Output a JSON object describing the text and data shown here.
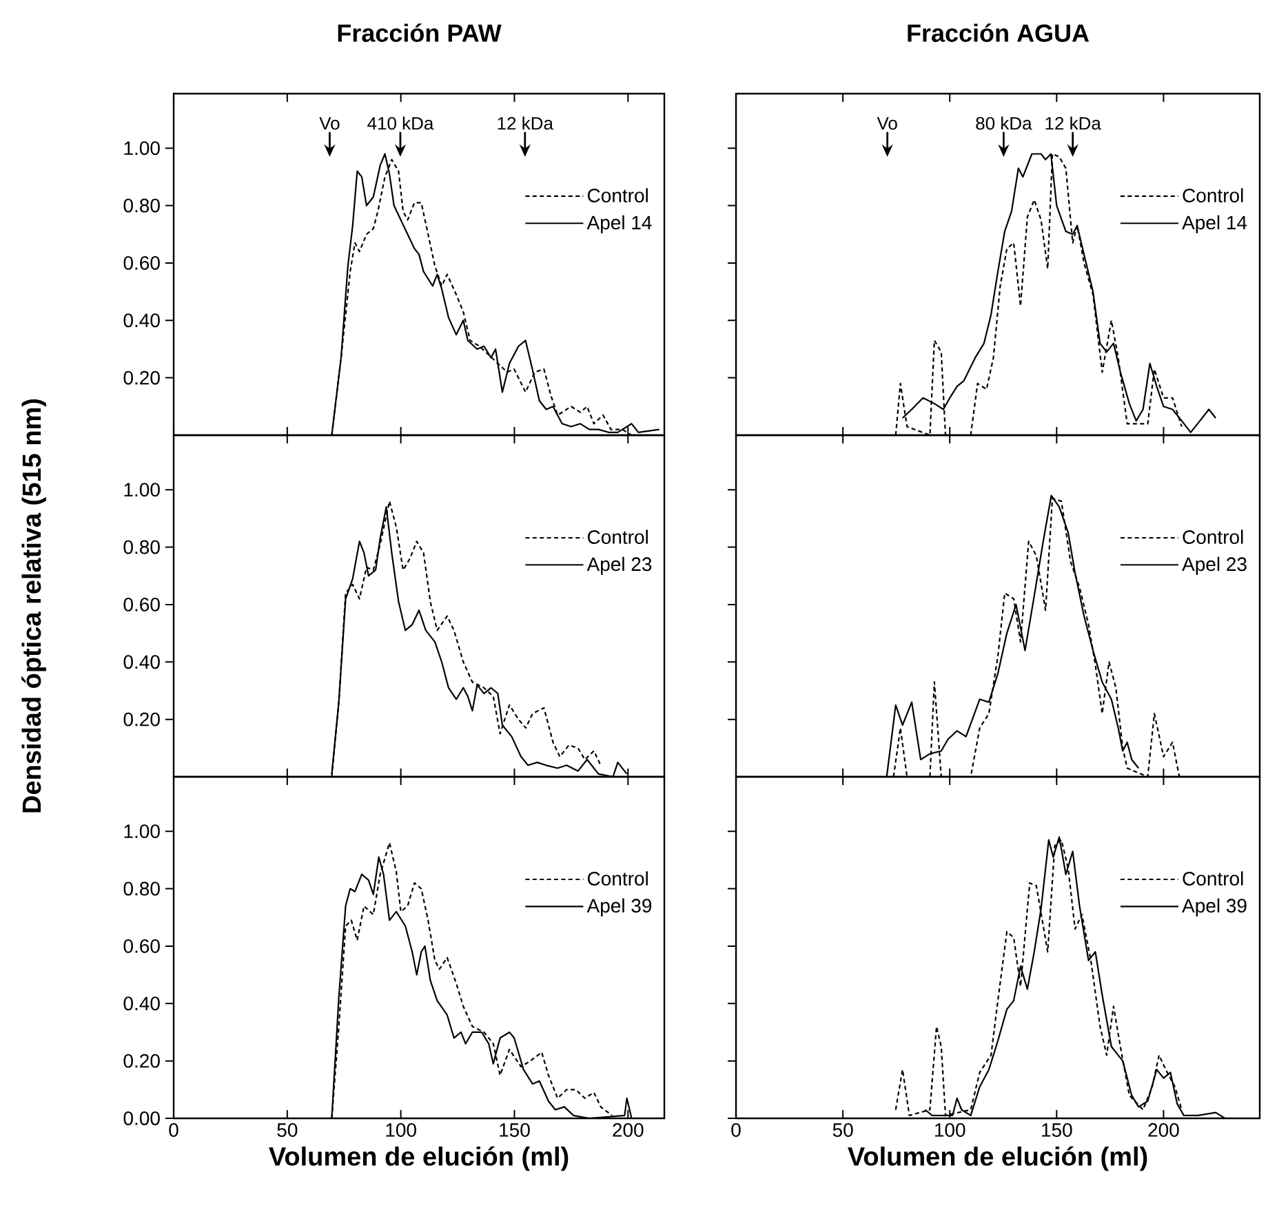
{
  "chart_data": [
    {
      "type": "line",
      "title": "Fracción PAW",
      "xlim": [
        0,
        216
      ],
      "ylim": [
        0,
        1.19
      ],
      "xticks": [
        0,
        50,
        100,
        150,
        200
      ],
      "yticks": [
        {
          "value": 0.2,
          "label": "0.20"
        },
        {
          "value": 0.4,
          "label": "0.40"
        },
        {
          "value": 0.6,
          "label": "0.60"
        },
        {
          "value": 0.8,
          "label": "0.80"
        },
        {
          "value": 1.0,
          "label": "1.00"
        }
      ],
      "tick_labels": "y",
      "legend": "right",
      "annotations": [
        "Vo",
        "410 kDa",
        "12 kDa"
      ],
      "series": [
        {
          "name": "Control",
          "color": "#000000",
          "line_style": "dashed",
          "x": [
            69.6,
            73.7,
            77.7,
            79.8,
            81.8,
            84.9,
            87.9,
            89.9,
            93,
            96,
            99,
            101,
            103,
            106,
            109,
            112,
            115,
            118,
            120.4,
            124.4,
            127.5,
            130.5,
            134.6,
            138.7,
            142.7,
            146.8,
            149.9,
            154.9,
            159,
            163,
            166,
            169,
            175,
            179,
            182,
            185,
            189,
            192.5,
            197.5,
            201.6
          ],
          "values": [
            0,
            0.27,
            0.57,
            0.67,
            0.64,
            0.7,
            0.72,
            0.78,
            0.9,
            0.96,
            0.92,
            0.78,
            0.75,
            0.81,
            0.81,
            0.7,
            0.59,
            0.52,
            0.56,
            0.49,
            0.43,
            0.33,
            0.31,
            0.28,
            0.25,
            0.22,
            0.23,
            0.15,
            0.22,
            0.23,
            0.14,
            0.07,
            0.1,
            0.08,
            0.1,
            0.04,
            0.07,
            0.02,
            0.02,
            0
          ]
        },
        {
          "name": "Apel 14",
          "color": "#000000",
          "line_style": "solid",
          "x": [
            69.6,
            73.7,
            76.7,
            78.8,
            80.8,
            82.8,
            84.9,
            87.9,
            90.9,
            93,
            95,
            97,
            100,
            103,
            106,
            108,
            110,
            114,
            116,
            118,
            121,
            124.4,
            127.5,
            129.5,
            133.6,
            136.6,
            139.7,
            141.7,
            144.7,
            147.8,
            151.8,
            154.9,
            157.9,
            161,
            164,
            167,
            171,
            175,
            179,
            183,
            187,
            191.4,
            195.5,
            201.6,
            204.6,
            213.8
          ],
          "values": [
            0,
            0.27,
            0.59,
            0.73,
            0.92,
            0.9,
            0.8,
            0.83,
            0.94,
            0.98,
            0.91,
            0.8,
            0.75,
            0.7,
            0.65,
            0.63,
            0.57,
            0.52,
            0.56,
            0.51,
            0.41,
            0.35,
            0.4,
            0.33,
            0.3,
            0.31,
            0.27,
            0.3,
            0.15,
            0.25,
            0.31,
            0.33,
            0.23,
            0.12,
            0.09,
            0.1,
            0.04,
            0.03,
            0.04,
            0.02,
            0.02,
            0.01,
            0.01,
            0.04,
            0.01,
            0.02
          ]
        }
      ]
    },
    {
      "type": "line",
      "title": "Fracción AGUA",
      "xlim": [
        0,
        245
      ],
      "ylim": [
        0,
        1.19
      ],
      "xticks": [
        0,
        50,
        100,
        150,
        200
      ],
      "yticks": [
        0.2,
        0.4,
        0.6,
        0.8,
        1.0
      ],
      "tick_labels": false,
      "legend": "right",
      "annotations": [
        "Vo",
        "80 kDa",
        "12 kDa"
      ],
      "series": [
        {
          "name": "Control",
          "color": "#000000",
          "line_style": "dashed",
          "x": [
            74.7,
            76.9,
            80,
            90.7,
            92.8,
            96,
            98,
            109.8,
            113,
            117.2,
            120.4,
            123.6,
            126.7,
            129.9,
            133.1,
            136.3,
            139.5,
            142.7,
            145.8,
            148,
            151.2,
            154.3,
            157.5,
            159.6,
            162.8,
            167,
            171.3,
            175.6,
            178.8,
            183,
            192.6,
            195.7,
            200,
            204.2,
            208.5
          ],
          "values": [
            0,
            0.18,
            0.03,
            0,
            0.33,
            0.29,
            0,
            0,
            0.18,
            0.16,
            0.27,
            0.52,
            0.65,
            0.67,
            0.45,
            0.76,
            0.82,
            0.75,
            0.58,
            0.98,
            0.97,
            0.93,
            0.67,
            0.73,
            0.6,
            0.49,
            0.22,
            0.4,
            0.27,
            0.04,
            0.04,
            0.23,
            0.13,
            0.13,
            0.03
          ]
        },
        {
          "name": "Apel 14",
          "color": "#000000",
          "line_style": "solid",
          "x": [
            77.9,
            82.2,
            87.5,
            92.8,
            97,
            100,
            103.4,
            106.6,
            111.9,
            116,
            119.3,
            122.5,
            125.7,
            128.9,
            132.1,
            134.2,
            138.4,
            142.7,
            144.8,
            147.3,
            150,
            154.3,
            157.5,
            159.6,
            162.8,
            167,
            170.3,
            173.4,
            176.6,
            179.8,
            184,
            187.2,
            190.4,
            193.6,
            196.8,
            200,
            204.2,
            208.5,
            212.7,
            217,
            221.2,
            224.4
          ],
          "values": [
            0.06,
            0.09,
            0.13,
            0.11,
            0.09,
            0.13,
            0.17,
            0.19,
            0.27,
            0.32,
            0.42,
            0.57,
            0.71,
            0.78,
            0.93,
            0.9,
            0.98,
            0.98,
            0.96,
            0.98,
            0.8,
            0.71,
            0.7,
            0.73,
            0.63,
            0.5,
            0.32,
            0.29,
            0.32,
            0.22,
            0.11,
            0.05,
            0.09,
            0.25,
            0.17,
            0.1,
            0.09,
            0.05,
            0.01,
            0.05,
            0.09,
            0.06
          ]
        }
      ]
    },
    {
      "type": "line",
      "ylabel": "Densidad óptica relativa (515 nm)",
      "xlim": [
        0,
        216
      ],
      "ylim": [
        0,
        1.19
      ],
      "xticks": [
        0,
        50,
        100,
        150,
        200
      ],
      "yticks": [
        {
          "value": 0.2,
          "label": "0.20"
        },
        {
          "value": 0.4,
          "label": "0.40"
        },
        {
          "value": 0.6,
          "label": "0.60"
        },
        {
          "value": 0.8,
          "label": "0.80"
        },
        {
          "value": 1.0,
          "label": "1.00"
        }
      ],
      "tick_labels": "y",
      "legend": "right",
      "series": [
        {
          "name": "Control",
          "color": "#000000",
          "line_style": "dashed",
          "x": [
            69.6,
            72.7,
            75.7,
            78.8,
            81.8,
            84.9,
            87.9,
            90.9,
            95,
            98,
            101,
            104,
            107,
            110,
            113,
            116,
            120.4,
            123.4,
            127.5,
            131.5,
            136.6,
            140.7,
            143.7,
            147.8,
            151.8,
            155,
            158,
            163,
            167,
            170,
            174,
            178,
            181,
            185,
            188
          ],
          "values": [
            0,
            0.26,
            0.64,
            0.67,
            0.62,
            0.73,
            0.72,
            0.81,
            0.96,
            0.87,
            0.72,
            0.76,
            0.82,
            0.78,
            0.61,
            0.51,
            0.56,
            0.51,
            0.4,
            0.33,
            0.31,
            0.28,
            0.15,
            0.25,
            0.2,
            0.17,
            0.22,
            0.24,
            0.12,
            0.07,
            0.11,
            0.1,
            0.06,
            0.09,
            0.04
          ]
        },
        {
          "name": "Apel 23",
          "color": "#000000",
          "line_style": "solid",
          "x": [
            69.6,
            72.7,
            75.7,
            78.8,
            81.8,
            83.8,
            85.8,
            88.9,
            90.9,
            93.6,
            96,
            99,
            102,
            105,
            108,
            111,
            115,
            118,
            121,
            124.4,
            127.5,
            129.5,
            131.5,
            133.6,
            136.6,
            139.7,
            142.7,
            144.7,
            148.8,
            152.9,
            156,
            160,
            164,
            169,
            173,
            178,
            182,
            187,
            193.4,
            195.5,
            199.5
          ],
          "values": [
            0.01,
            0.26,
            0.62,
            0.69,
            0.82,
            0.78,
            0.7,
            0.72,
            0.83,
            0.94,
            0.78,
            0.61,
            0.51,
            0.53,
            0.58,
            0.51,
            0.47,
            0.4,
            0.31,
            0.27,
            0.31,
            0.28,
            0.23,
            0.32,
            0.29,
            0.31,
            0.29,
            0.18,
            0.14,
            0.07,
            0.04,
            0.05,
            0.04,
            0.03,
            0.04,
            0.02,
            0.06,
            0.01,
            0,
            0.05,
            0.01
          ]
        }
      ]
    },
    {
      "type": "line",
      "xlim": [
        0,
        245
      ],
      "ylim": [
        0,
        1.19
      ],
      "xticks": [
        0,
        50,
        100,
        150,
        200
      ],
      "yticks": [
        0.2,
        0.4,
        0.6,
        0.8,
        1.0
      ],
      "tick_labels": false,
      "legend": "right",
      "series": [
        {
          "name": "Control",
          "color": "#000000",
          "line_style": "dashed",
          "x": [
            73.7,
            76.9,
            80,
            90.7,
            92.8,
            96,
            109.8,
            114,
            118.3,
            122.5,
            125.7,
            129.9,
            133.1,
            136.9,
            140.5,
            144.8,
            148,
            152.2,
            156.5,
            160.7,
            164.9,
            168.1,
            171.3,
            174.5,
            177.7,
            180.9,
            183,
            192.6,
            195.7,
            200,
            204.2,
            207.4
          ],
          "values": [
            0,
            0.17,
            0,
            0,
            0.33,
            0,
            0,
            0.17,
            0.22,
            0.42,
            0.64,
            0.62,
            0.47,
            0.82,
            0.77,
            0.58,
            0.97,
            0.96,
            0.75,
            0.66,
            0.53,
            0.39,
            0.22,
            0.4,
            0.31,
            0.1,
            0.03,
            0,
            0.22,
            0.07,
            0.12,
            0
          ]
        },
        {
          "name": "Apel 23",
          "color": "#000000",
          "line_style": "solid",
          "x": [
            70.5,
            74.7,
            77.9,
            82.2,
            86.4,
            90.7,
            96,
            99.1,
            103.4,
            107.6,
            114,
            118.3,
            122.5,
            126.7,
            131,
            135.2,
            139.5,
            143.7,
            147.5,
            151.2,
            155.4,
            158.6,
            162.8,
            167,
            171.3,
            175.6,
            178.8,
            180.9,
            183,
            185.1,
            188.3
          ],
          "values": [
            0,
            0.25,
            0.18,
            0.26,
            0.06,
            0.08,
            0.09,
            0.13,
            0.16,
            0.14,
            0.27,
            0.26,
            0.36,
            0.5,
            0.6,
            0.44,
            0.63,
            0.82,
            0.98,
            0.94,
            0.85,
            0.71,
            0.56,
            0.44,
            0.33,
            0.27,
            0.17,
            0.09,
            0.12,
            0.06,
            0.03
          ]
        }
      ]
    },
    {
      "type": "line",
      "xlabel": "Volumen de elución (ml)",
      "xlim": [
        0,
        216
      ],
      "ylim": [
        0,
        1.19
      ],
      "xticks": [
        0,
        50,
        100,
        150,
        200
      ],
      "yticks": [
        {
          "value": 0,
          "label": "0.00"
        },
        {
          "value": 0.2,
          "label": "0.20"
        },
        {
          "value": 0.4,
          "label": "0.40"
        },
        {
          "value": 0.6,
          "label": "0.60"
        },
        {
          "value": 0.8,
          "label": "0.80"
        },
        {
          "value": 1.0,
          "label": "1.00"
        }
      ],
      "legend": "right",
      "series": [
        {
          "name": "Control",
          "color": "#000000",
          "line_style": "dashed",
          "x": [
            69.6,
            72.7,
            75.7,
            78.2,
            80.8,
            83.8,
            87.9,
            90.9,
            95,
            98,
            100,
            103,
            106,
            109,
            112,
            115,
            117,
            120.4,
            124.4,
            127.5,
            131.5,
            136.6,
            140.7,
            143.7,
            147.8,
            152.9,
            157,
            162,
            165,
            169,
            173,
            177,
            181,
            185,
            188,
            193
          ],
          "values": [
            0,
            0.32,
            0.67,
            0.69,
            0.62,
            0.74,
            0.71,
            0.85,
            0.96,
            0.86,
            0.72,
            0.74,
            0.82,
            0.8,
            0.69,
            0.55,
            0.52,
            0.56,
            0.47,
            0.39,
            0.32,
            0.3,
            0.26,
            0.15,
            0.24,
            0.18,
            0.2,
            0.23,
            0.15,
            0.07,
            0.1,
            0.1,
            0.07,
            0.09,
            0.04,
            0.01
          ]
        },
        {
          "name": "Apel 39",
          "color": "#000000",
          "line_style": "solid",
          "x": [
            69.6,
            72.7,
            75.7,
            77.7,
            79.8,
            82.8,
            85.8,
            87.9,
            90.3,
            92.4,
            95,
            98,
            102,
            105,
            107,
            109,
            110.6,
            113,
            116,
            120.4,
            123.4,
            126.5,
            128.5,
            131.5,
            135.6,
            138.7,
            140.7,
            143.7,
            147.8,
            149.9,
            154,
            158,
            161,
            165,
            168,
            172,
            176,
            183,
            198.5,
            199.5,
            201.6
          ],
          "values": [
            0,
            0.42,
            0.74,
            0.8,
            0.79,
            0.85,
            0.83,
            0.78,
            0.91,
            0.85,
            0.69,
            0.72,
            0.67,
            0.58,
            0.5,
            0.58,
            0.6,
            0.48,
            0.41,
            0.36,
            0.28,
            0.3,
            0.26,
            0.3,
            0.3,
            0.26,
            0.19,
            0.28,
            0.3,
            0.28,
            0.17,
            0.12,
            0.13,
            0.06,
            0.03,
            0.04,
            0.01,
            0,
            0.01,
            0.07,
            0
          ]
        }
      ]
    },
    {
      "type": "line",
      "xlabel": "Volumen de elución (ml)",
      "xlim": [
        0,
        245
      ],
      "ylim": [
        0,
        1.19
      ],
      "xticks": [
        0,
        50,
        100,
        150,
        200
      ],
      "yticks": [
        0,
        0.2,
        0.4,
        0.6,
        0.8,
        1.0
      ],
      "tick_labels": "x",
      "legend": "right",
      "series": [
        {
          "name": "Control",
          "color": "#000000",
          "line_style": "dashed",
          "x": [
            74.7,
            77.9,
            81.1,
            90.7,
            93.8,
            96,
            98,
            109.8,
            114,
            119.3,
            122.5,
            126.7,
            129.9,
            133.1,
            137.4,
            140.5,
            145.8,
            149.1,
            152.2,
            155.4,
            158.6,
            161.8,
            166,
            170.3,
            173.4,
            176.6,
            179.8,
            184,
            190.4,
            194.7,
            197.9,
            201,
            205.3,
            208.5
          ],
          "values": [
            0.03,
            0.17,
            0.01,
            0.03,
            0.32,
            0.25,
            0.01,
            0.03,
            0.16,
            0.22,
            0.41,
            0.65,
            0.63,
            0.46,
            0.82,
            0.81,
            0.58,
            0.95,
            0.97,
            0.87,
            0.66,
            0.71,
            0.55,
            0.32,
            0.22,
            0.39,
            0.25,
            0.08,
            0.03,
            0.11,
            0.22,
            0.17,
            0.11,
            0.03
          ]
        },
        {
          "name": "Apel 39",
          "color": "#000000",
          "line_style": "solid",
          "x": [
            88.5,
            91.7,
            101.3,
            103.4,
            105.5,
            109.8,
            114,
            118.3,
            122.5,
            126.7,
            129.9,
            133.1,
            136.3,
            139.5,
            142.7,
            146.3,
            148.4,
            151.2,
            154.3,
            157.5,
            160.7,
            164.9,
            168.1,
            171.3,
            175.6,
            180.9,
            185.1,
            188.3,
            192.6,
            196.8,
            200,
            203.2,
            206.4,
            209.5,
            216,
            224.4,
            228.7
          ],
          "values": [
            0.03,
            0.01,
            0.01,
            0.07,
            0.03,
            0.01,
            0.11,
            0.17,
            0.27,
            0.38,
            0.41,
            0.53,
            0.45,
            0.58,
            0.73,
            0.97,
            0.91,
            0.98,
            0.85,
            0.93,
            0.74,
            0.55,
            0.58,
            0.43,
            0.25,
            0.2,
            0.08,
            0.04,
            0.06,
            0.17,
            0.14,
            0.16,
            0.05,
            0.01,
            0.01,
            0.02,
            0
          ]
        }
      ]
    }
  ]
}
